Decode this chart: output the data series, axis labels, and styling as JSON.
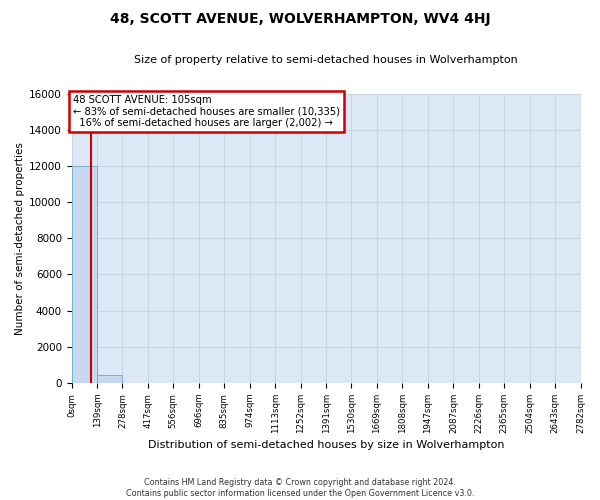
{
  "title": "48, SCOTT AVENUE, WOLVERHAMPTON, WV4 4HJ",
  "subtitle": "Size of property relative to semi-detached houses in Wolverhampton",
  "xlabel_bottom": "Distribution of semi-detached houses by size in Wolverhampton",
  "ylabel": "Number of semi-detached properties",
  "footer": "Contains HM Land Registry data © Crown copyright and database right 2024.\nContains public sector information licensed under the Open Government Licence v3.0.",
  "bin_edges": [
    0,
    139,
    278,
    417,
    556,
    696,
    835,
    974,
    1113,
    1252,
    1391,
    1530,
    1669,
    1808,
    1947,
    2087,
    2226,
    2365,
    2504,
    2643,
    2782
  ],
  "bar_values": [
    12000,
    420,
    25,
    8,
    4,
    2,
    1,
    1,
    1,
    0,
    0,
    0,
    0,
    0,
    0,
    0,
    0,
    0,
    0,
    0
  ],
  "bar_color": "#c8d8ee",
  "bar_edge_color": "#7aaed4",
  "property_size": 105,
  "pct_smaller": 83,
  "count_smaller": 10335,
  "pct_larger": 16,
  "count_larger": 2002,
  "annotation_box_edgecolor": "#cc0000",
  "vline_color": "#cc0000",
  "ylim": [
    0,
    16000
  ],
  "yticks": [
    0,
    2000,
    4000,
    6000,
    8000,
    10000,
    12000,
    14000,
    16000
  ],
  "bg_color": "#dce8f5",
  "grid_color": "#c8d4e0"
}
